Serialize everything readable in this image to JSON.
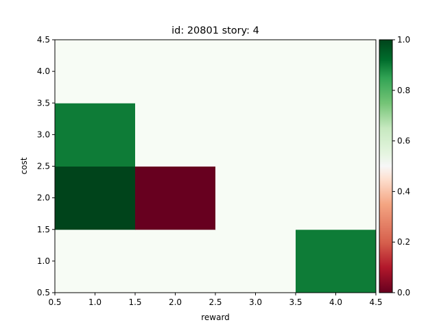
{
  "chart_data": {
    "type": "heatmap",
    "title": "id: 20801 story: 4",
    "xlabel": "reward",
    "ylabel": "cost",
    "xlim": [
      0.5,
      4.5
    ],
    "ylim": [
      0.5,
      4.5
    ],
    "x_ticks": [
      "0.5",
      "1.0",
      "1.5",
      "2.0",
      "2.5",
      "3.0",
      "3.5",
      "4.0",
      "4.5"
    ],
    "y_ticks": [
      "0.5",
      "1.0",
      "1.5",
      "2.0",
      "2.5",
      "3.0",
      "3.5",
      "4.0",
      "4.5"
    ],
    "x": [
      1,
      2,
      3,
      4
    ],
    "y": [
      1,
      2,
      3,
      4
    ],
    "values": [
      [
        0.5,
        0.5,
        0.5,
        0.9
      ],
      [
        1.0,
        0.0,
        0.5,
        0.5
      ],
      [
        0.9,
        0.5,
        0.5,
        0.5
      ],
      [
        0.5,
        0.5,
        0.5,
        0.5
      ]
    ],
    "colormap": "RdYlGn-like red-white-green",
    "colorbar": {
      "min": 0.0,
      "max": 1.0,
      "ticks": [
        "0.0",
        "0.2",
        "0.4",
        "0.6",
        "0.8",
        "1.0"
      ]
    },
    "colors": {
      "low": "#67001f",
      "mid": "#f7fcf5",
      "high": "#00441b"
    },
    "grid": false
  }
}
